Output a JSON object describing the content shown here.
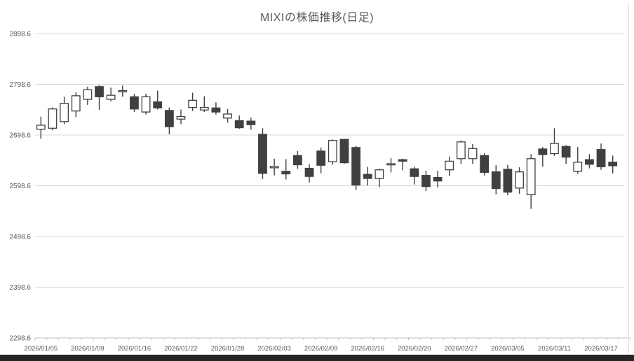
{
  "window": {
    "bottom_bar_color": "#262626"
  },
  "chart_data": {
    "type": "candlestick",
    "title": "MIXIの株価推移(日足)",
    "ylim": [
      2298.6,
      2898.6
    ],
    "grid": true,
    "legend": "none",
    "colors": {
      "up_fill": "#FFFFFF",
      "down_fill": "#404040",
      "outline": "#404040",
      "grid": "#D9D9D9",
      "axis": "#BFBFBF",
      "label": "#595959",
      "title": "#595959",
      "background": "#FFFFFF"
    },
    "y_ticks": [
      {
        "value": 2898.6,
        "label": "2898.6"
      },
      {
        "value": 2798.6,
        "label": "2798.6"
      },
      {
        "value": 2698.6,
        "label": "2698.6"
      },
      {
        "value": 2598.6,
        "label": "2598.6"
      },
      {
        "value": 2498.6,
        "label": "2498.6"
      },
      {
        "value": 2398.6,
        "label": "2398.6"
      },
      {
        "value": 2298.6,
        "label": "2298.6"
      }
    ],
    "x_ticks": [
      {
        "index": 0,
        "label": "2026/01/05"
      },
      {
        "index": 4,
        "label": "2026/01/09"
      },
      {
        "index": 8,
        "label": "2026/01/16"
      },
      {
        "index": 12,
        "label": "2026/01/22"
      },
      {
        "index": 16,
        "label": "2026/01/28"
      },
      {
        "index": 20,
        "label": "2026/02/03"
      },
      {
        "index": 24,
        "label": "2026/02/09"
      },
      {
        "index": 28,
        "label": "2026/02/16"
      },
      {
        "index": 32,
        "label": "2026/02/20"
      },
      {
        "index": 36,
        "label": "2026/02/27"
      },
      {
        "index": 40,
        "label": "2026/03/05"
      },
      {
        "index": 44,
        "label": "2026/03/11"
      },
      {
        "index": 48,
        "label": "2026/03/17"
      }
    ],
    "candles": [
      {
        "open": 2710,
        "high": 2735,
        "low": 2691,
        "close": 2718
      },
      {
        "open": 2712,
        "high": 2753,
        "low": 2708,
        "close": 2750
      },
      {
        "open": 2725,
        "high": 2774,
        "low": 2720,
        "close": 2761
      },
      {
        "open": 2746,
        "high": 2783,
        "low": 2734,
        "close": 2776
      },
      {
        "open": 2769,
        "high": 2794,
        "low": 2758,
        "close": 2788
      },
      {
        "open": 2794,
        "high": 2797,
        "low": 2748,
        "close": 2774
      },
      {
        "open": 2769,
        "high": 2792,
        "low": 2765,
        "close": 2777
      },
      {
        "open": 2784,
        "high": 2796,
        "low": 2774,
        "close": 2786
      },
      {
        "open": 2774,
        "high": 2780,
        "low": 2744,
        "close": 2750
      },
      {
        "open": 2744,
        "high": 2780,
        "low": 2739,
        "close": 2774
      },
      {
        "open": 2764,
        "high": 2786,
        "low": 2749,
        "close": 2752
      },
      {
        "open": 2747,
        "high": 2753,
        "low": 2700,
        "close": 2715
      },
      {
        "open": 2730,
        "high": 2749,
        "low": 2720,
        "close": 2735
      },
      {
        "open": 2753,
        "high": 2782,
        "low": 2746,
        "close": 2767
      },
      {
        "open": 2748,
        "high": 2775,
        "low": 2744,
        "close": 2753
      },
      {
        "open": 2752,
        "high": 2763,
        "low": 2739,
        "close": 2744
      },
      {
        "open": 2732,
        "high": 2750,
        "low": 2723,
        "close": 2740
      },
      {
        "open": 2727,
        "high": 2737,
        "low": 2711,
        "close": 2713
      },
      {
        "open": 2726,
        "high": 2733,
        "low": 2709,
        "close": 2719
      },
      {
        "open": 2700,
        "high": 2712,
        "low": 2612,
        "close": 2623
      },
      {
        "open": 2634,
        "high": 2652,
        "low": 2619,
        "close": 2637
      },
      {
        "open": 2627,
        "high": 2651,
        "low": 2611,
        "close": 2622
      },
      {
        "open": 2658,
        "high": 2667,
        "low": 2632,
        "close": 2640
      },
      {
        "open": 2633,
        "high": 2641,
        "low": 2605,
        "close": 2617
      },
      {
        "open": 2667,
        "high": 2674,
        "low": 2623,
        "close": 2639
      },
      {
        "open": 2646,
        "high": 2690,
        "low": 2640,
        "close": 2688
      },
      {
        "open": 2690,
        "high": 2691,
        "low": 2642,
        "close": 2644
      },
      {
        "open": 2674,
        "high": 2677,
        "low": 2590,
        "close": 2600
      },
      {
        "open": 2621,
        "high": 2636,
        "low": 2599,
        "close": 2613
      },
      {
        "open": 2613,
        "high": 2632,
        "low": 2596,
        "close": 2630
      },
      {
        "open": 2640,
        "high": 2653,
        "low": 2625,
        "close": 2642
      },
      {
        "open": 2650,
        "high": 2652,
        "low": 2629,
        "close": 2647
      },
      {
        "open": 2632,
        "high": 2636,
        "low": 2601,
        "close": 2617
      },
      {
        "open": 2619,
        "high": 2628,
        "low": 2588,
        "close": 2597
      },
      {
        "open": 2615,
        "high": 2628,
        "low": 2595,
        "close": 2608
      },
      {
        "open": 2630,
        "high": 2656,
        "low": 2618,
        "close": 2647
      },
      {
        "open": 2652,
        "high": 2688,
        "low": 2642,
        "close": 2685
      },
      {
        "open": 2652,
        "high": 2681,
        "low": 2642,
        "close": 2672
      },
      {
        "open": 2658,
        "high": 2663,
        "low": 2619,
        "close": 2625
      },
      {
        "open": 2626,
        "high": 2639,
        "low": 2582,
        "close": 2593
      },
      {
        "open": 2631,
        "high": 2640,
        "low": 2580,
        "close": 2586
      },
      {
        "open": 2594,
        "high": 2635,
        "low": 2583,
        "close": 2626
      },
      {
        "open": 2581,
        "high": 2661,
        "low": 2553,
        "close": 2652
      },
      {
        "open": 2671,
        "high": 2675,
        "low": 2636,
        "close": 2660
      },
      {
        "open": 2662,
        "high": 2712,
        "low": 2657,
        "close": 2682
      },
      {
        "open": 2676,
        "high": 2679,
        "low": 2642,
        "close": 2655
      },
      {
        "open": 2627,
        "high": 2675,
        "low": 2622,
        "close": 2645
      },
      {
        "open": 2650,
        "high": 2661,
        "low": 2633,
        "close": 2641
      },
      {
        "open": 2670,
        "high": 2682,
        "low": 2630,
        "close": 2636
      },
      {
        "open": 2645,
        "high": 2658,
        "low": 2623,
        "close": 2638
      }
    ]
  }
}
